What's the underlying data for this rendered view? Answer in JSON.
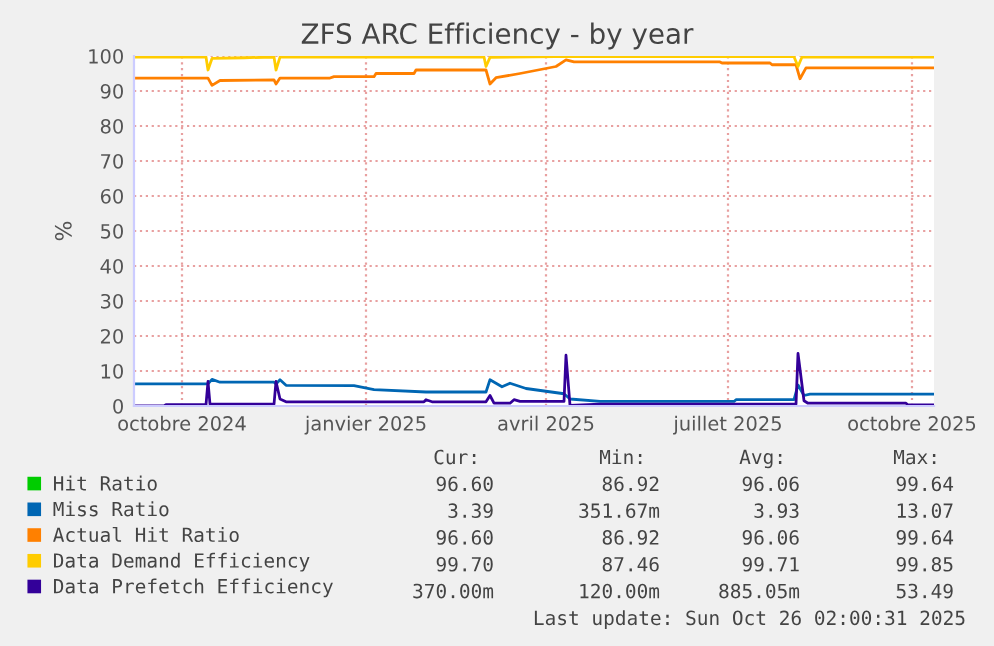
{
  "chart_data": {
    "type": "line",
    "title": "ZFS ARC Efficiency - by year",
    "ylabel": "%",
    "xlim": [
      "2024-09-21",
      "2025-10-26"
    ],
    "ylim": [
      0,
      100
    ],
    "xticks": [
      {
        "value": "2024-10-15",
        "label": "octobre 2024"
      },
      {
        "value": "2025-01-15",
        "label": "janvier 2025"
      },
      {
        "value": "2025-04-15",
        "label": "avril 2025"
      },
      {
        "value": "2025-07-15",
        "label": "juillet 2025"
      },
      {
        "value": "2025-10-15",
        "label": "octobre 2025"
      }
    ],
    "yticks": [
      0,
      10,
      20,
      30,
      40,
      50,
      60,
      70,
      80,
      90,
      100
    ],
    "grid": true,
    "legend": "bottom left",
    "series": [
      {
        "name": "Hit Ratio",
        "color": "#00cc00"
      },
      {
        "name": "Miss Ratio",
        "color": "#0066b3",
        "x": [
          "2024-09-21",
          "2024-10-28",
          "2024-10-30",
          "2024-11-03",
          "2024-11-30",
          "2024-12-01",
          "2024-12-03",
          "2024-12-06",
          "2025-01-09",
          "2025-01-19",
          "2025-02-14",
          "2025-03-16",
          "2025-03-18",
          "2025-03-24",
          "2025-03-28",
          "2025-04-05",
          "2025-04-24",
          "2025-04-27",
          "2025-05-12",
          "2025-07-18",
          "2025-07-19",
          "2025-08-17",
          "2025-08-19",
          "2025-08-22",
          "2025-08-25",
          "2025-10-26"
        ],
        "values": [
          6.3,
          6.3,
          7.6,
          6.8,
          6.8,
          6.3,
          7.5,
          5.9,
          5.8,
          4.7,
          4.0,
          4.0,
          7.5,
          5.5,
          6.5,
          5.0,
          3.5,
          2.0,
          1.3,
          1.3,
          1.8,
          1.8,
          6.0,
          3.0,
          3.4,
          3.4
        ]
      },
      {
        "name": "Actual Hit Ratio",
        "color": "#ff8000",
        "x": [
          "2024-09-21",
          "2024-10-28",
          "2024-10-30",
          "2024-11-03",
          "2024-11-30",
          "2024-12-01",
          "2024-12-03",
          "2024-12-28",
          "2024-12-30",
          "2025-01-19",
          "2025-01-20",
          "2025-02-08",
          "2025-02-09",
          "2025-03-16",
          "2025-03-18",
          "2025-03-21",
          "2025-04-02",
          "2025-04-20",
          "2025-04-25",
          "2025-04-29",
          "2025-07-11",
          "2025-07-12",
          "2025-08-05",
          "2025-08-06",
          "2025-08-18",
          "2025-08-20",
          "2025-08-23",
          "2025-10-26"
        ],
        "values": [
          93.7,
          93.7,
          91.6,
          93.0,
          93.2,
          92.0,
          93.7,
          93.7,
          94.1,
          94.1,
          95.0,
          95.0,
          96.0,
          96.0,
          92.0,
          93.8,
          95.0,
          97.0,
          98.9,
          98.3,
          98.3,
          98.0,
          98.0,
          97.5,
          97.5,
          93.5,
          96.6,
          96.6
        ]
      },
      {
        "name": "Data Demand Efficiency",
        "color": "#ffcc00",
        "x": [
          "2024-09-21",
          "2024-10-27",
          "2024-10-28",
          "2024-10-30",
          "2024-11-15",
          "2024-11-30",
          "2024-12-01",
          "2024-12-03",
          "2025-03-15",
          "2025-03-16",
          "2025-03-18",
          "2025-04-20",
          "2025-08-17",
          "2025-08-19",
          "2025-08-21",
          "2025-10-26"
        ],
        "values": [
          99.7,
          99.7,
          96.0,
          99.3,
          99.5,
          99.7,
          96.0,
          99.7,
          99.7,
          97.0,
          99.6,
          99.8,
          99.8,
          97.0,
          99.7,
          99.7
        ]
      },
      {
        "name": "Data Prefetch Efficiency",
        "color": "#330099",
        "x": [
          "2024-09-21",
          "2024-10-06",
          "2024-10-07",
          "2024-10-27",
          "2024-10-28",
          "2024-10-29",
          "2024-11-30",
          "2024-12-01",
          "2024-12-03",
          "2024-12-06",
          "2025-02-13",
          "2025-02-14",
          "2025-02-17",
          "2025-03-16",
          "2025-03-18",
          "2025-03-20",
          "2025-03-28",
          "2025-03-30",
          "2025-04-02",
          "2025-04-24",
          "2025-04-25",
          "2025-04-27",
          "2025-05-12",
          "2025-08-18",
          "2025-08-19",
          "2025-08-22",
          "2025-08-24",
          "2025-10-12",
          "2025-10-13",
          "2025-10-26"
        ],
        "values": [
          0,
          0,
          0.4,
          0.4,
          7.0,
          0.5,
          0.5,
          7.0,
          2.0,
          1.2,
          1.2,
          1.8,
          1.2,
          1.2,
          3.0,
          0.8,
          0.8,
          1.8,
          1.3,
          1.3,
          14.5,
          0.2,
          0.5,
          0.5,
          15.0,
          1.5,
          0.8,
          0.8,
          0.3,
          0.3
        ]
      }
    ],
    "annotations": [
      "Cur:",
      "Min:",
      "Avg:",
      "Max:",
      "96.60",
      "86.92",
      "96.06",
      "99.64",
      "3.39",
      "351.67m",
      "3.93",
      "13.07",
      "96.60",
      "86.92",
      "96.06",
      "99.64",
      "99.70",
      "87.46",
      "99.71",
      "99.85",
      "370.00m",
      "120.00m",
      "885.05m",
      "53.49",
      "Last update: Sun Oct 26 02:00:31 2025"
    ]
  }
}
